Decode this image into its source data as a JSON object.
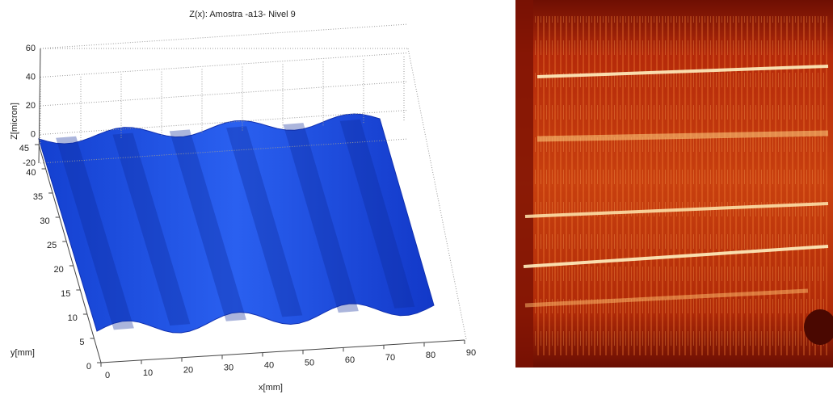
{
  "chart_data": {
    "type": "surface",
    "title": "Z(x): Amostra -a13- Nivel 9",
    "xlabel": "x[mm]",
    "ylabel": "y[mm]",
    "zlabel": "Z[micron]",
    "xlim": [
      0,
      90
    ],
    "xticks": [
      0,
      10,
      20,
      30,
      40,
      50,
      60,
      70,
      80,
      90
    ],
    "ylim": [
      0,
      45
    ],
    "yticks": [
      0,
      5,
      10,
      15,
      20,
      25,
      30,
      35,
      40,
      45
    ],
    "zlim": [
      -20,
      60
    ],
    "zticks": [
      -20,
      0,
      20,
      40,
      60
    ],
    "color": "#1f4fe0",
    "grid": true
  }
}
